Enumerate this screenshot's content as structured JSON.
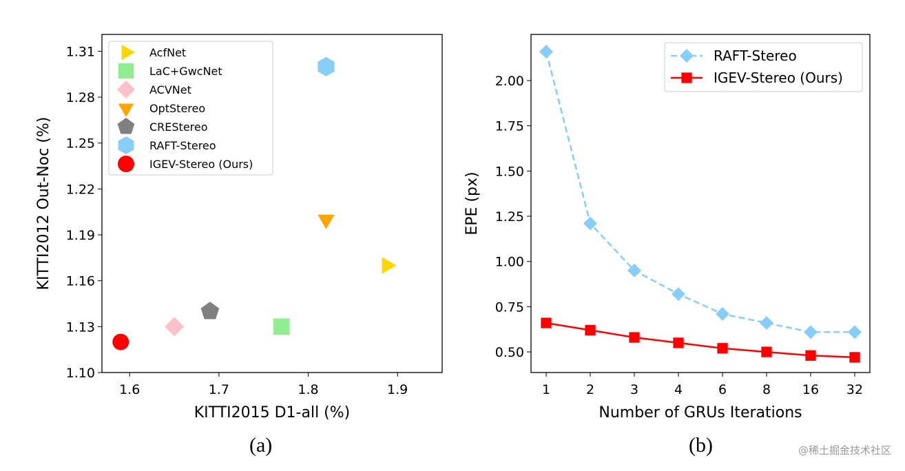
{
  "chart_data": [
    {
      "type": "scatter",
      "xlabel": "KITTI2015 D1-all (%)",
      "ylabel": "KITTI2012 Out-Noc (%)",
      "xlim": [
        1.569,
        1.95
      ],
      "ylim": [
        1.1,
        1.321
      ],
      "xticks": [
        "1.6",
        "1.7",
        "1.8",
        "1.9"
      ],
      "yticks": [
        "1.10",
        "1.13",
        "1.16",
        "1.19",
        "1.22",
        "1.25",
        "1.28",
        "1.31"
      ],
      "grid": false,
      "legend_position": "top-left",
      "caption": "(a)",
      "series": [
        {
          "name": "AcfNet",
          "marker": "triangle-right",
          "color": "#FFD700",
          "x": 1.888,
          "y": 1.17
        },
        {
          "name": "LaC+GwcNet",
          "marker": "square",
          "color": "#90EE90",
          "x": 1.77,
          "y": 1.13
        },
        {
          "name": "ACVNet",
          "marker": "diamond",
          "color": "#FFC0CB",
          "x": 1.65,
          "y": 1.13
        },
        {
          "name": "OptStereo",
          "marker": "triangle-down",
          "color": "#FFA500",
          "x": 1.82,
          "y": 1.2
        },
        {
          "name": "CREStereo",
          "marker": "pentagon",
          "color": "#808080",
          "x": 1.69,
          "y": 1.14
        },
        {
          "name": "RAFT-Stereo",
          "marker": "hexagon",
          "color": "#87CEFA",
          "x": 1.82,
          "y": 1.3
        },
        {
          "name": "IGEV-Stereo (Ours)",
          "marker": "circle",
          "color": "#FF0000",
          "x": 1.59,
          "y": 1.12
        }
      ]
    },
    {
      "type": "line",
      "xlabel": "Number of GRUs Iterations",
      "ylabel": "EPE (px)",
      "categories": [
        "1",
        "2",
        "3",
        "4",
        "6",
        "8",
        "16",
        "32"
      ],
      "ylim": [
        0.386,
        2.255
      ],
      "yticks": [
        "0.50",
        "0.75",
        "1.00",
        "1.25",
        "1.50",
        "1.75",
        "2.00"
      ],
      "grid": false,
      "legend_position": "top-right",
      "caption": "(b)",
      "series": [
        {
          "name": "RAFT-Stereo",
          "color": "#87CEFA",
          "linestyle": "dashed",
          "marker": "diamond",
          "values": [
            2.16,
            1.21,
            0.95,
            0.82,
            0.71,
            0.66,
            0.61,
            0.61
          ]
        },
        {
          "name": "IGEV-Stereo (Ours)",
          "color": "#FF0000",
          "linestyle": "solid",
          "marker": "square",
          "values": [
            0.66,
            0.62,
            0.58,
            0.55,
            0.52,
            0.5,
            0.48,
            0.47
          ]
        }
      ]
    }
  ],
  "watermark": "@稀土掘金技术社区"
}
